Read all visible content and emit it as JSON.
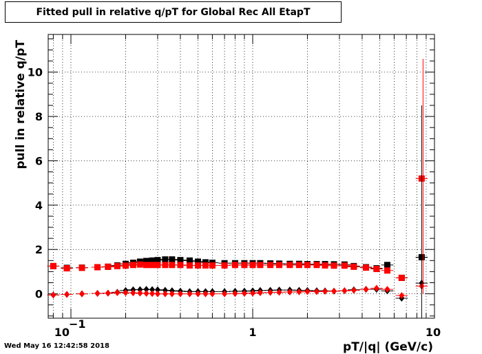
{
  "title": "Fitted pull in relative q/pT for Global Rec All EtapT",
  "timestamp": "Wed May 16 12:42:58 2018",
  "chart_data": {
    "type": "scatter",
    "title": "Fitted pull in relative q/pT for Global Rec All EtapT",
    "xlabel": "pT/|q| (GeV/c)",
    "ylabel": "pull in relative q/pT",
    "xscale": "log",
    "xlim": [
      0.075,
      10
    ],
    "ylim": [
      -1.1,
      11.7
    ],
    "grid": true,
    "x_tick_labels": [
      "10",
      "−1",
      "1",
      "10"
    ],
    "y_tick_labels": [
      "0",
      "2",
      "4",
      "6",
      "8",
      "10"
    ],
    "series": [
      {
        "color": "#000000",
        "marker": "square",
        "x": [
          0.08,
          0.095,
          0.115,
          0.14,
          0.16,
          0.18,
          0.2,
          0.22,
          0.24,
          0.26,
          0.28,
          0.3,
          0.33,
          0.36,
          0.4,
          0.45,
          0.5,
          0.55,
          0.6,
          0.7,
          0.8,
          0.9,
          1.0,
          1.1,
          1.25,
          1.4,
          1.6,
          1.8,
          2.0,
          2.25,
          2.5,
          2.8,
          3.2,
          3.6,
          4.2,
          4.8,
          5.5,
          6.6,
          8.5
        ],
        "y": [
          1.25,
          1.17,
          1.18,
          1.2,
          1.22,
          1.28,
          1.35,
          1.4,
          1.45,
          1.48,
          1.5,
          1.52,
          1.55,
          1.55,
          1.52,
          1.5,
          1.45,
          1.42,
          1.4,
          1.38,
          1.38,
          1.38,
          1.38,
          1.38,
          1.37,
          1.36,
          1.35,
          1.35,
          1.34,
          1.34,
          1.34,
          1.33,
          1.32,
          1.25,
          1.2,
          1.15,
          1.3,
          0.72,
          1.65
        ]
      },
      {
        "color": "#000000",
        "marker": "diamond",
        "x": [
          0.08,
          0.095,
          0.115,
          0.14,
          0.16,
          0.18,
          0.2,
          0.22,
          0.24,
          0.26,
          0.28,
          0.3,
          0.33,
          0.36,
          0.4,
          0.45,
          0.5,
          0.55,
          0.6,
          0.7,
          0.8,
          0.9,
          1.0,
          1.1,
          1.25,
          1.4,
          1.6,
          1.8,
          2.0,
          2.25,
          2.5,
          2.8,
          3.2,
          3.6,
          4.2,
          4.8,
          5.5,
          6.6,
          8.5
        ],
        "y": [
          -0.05,
          -0.03,
          0.0,
          0.02,
          0.03,
          0.07,
          0.15,
          0.18,
          0.19,
          0.2,
          0.19,
          0.18,
          0.16,
          0.14,
          0.12,
          0.1,
          0.1,
          0.1,
          0.1,
          0.1,
          0.11,
          0.12,
          0.13,
          0.15,
          0.16,
          0.17,
          0.17,
          0.16,
          0.15,
          0.14,
          0.13,
          0.12,
          0.14,
          0.18,
          0.2,
          0.2,
          0.13,
          -0.2,
          0.48
        ]
      },
      {
        "color": "#ff0000",
        "marker": "square",
        "x": [
          0.08,
          0.095,
          0.115,
          0.14,
          0.16,
          0.18,
          0.2,
          0.22,
          0.24,
          0.26,
          0.28,
          0.3,
          0.33,
          0.36,
          0.4,
          0.45,
          0.5,
          0.55,
          0.6,
          0.7,
          0.8,
          0.9,
          1.0,
          1.1,
          1.25,
          1.4,
          1.6,
          1.8,
          2.0,
          2.25,
          2.5,
          2.8,
          3.2,
          3.6,
          4.2,
          4.8,
          5.5,
          6.6,
          8.5
        ],
        "y": [
          1.25,
          1.15,
          1.17,
          1.2,
          1.22,
          1.25,
          1.27,
          1.3,
          1.32,
          1.3,
          1.3,
          1.3,
          1.3,
          1.3,
          1.3,
          1.28,
          1.28,
          1.28,
          1.28,
          1.28,
          1.3,
          1.3,
          1.3,
          1.3,
          1.3,
          1.3,
          1.3,
          1.3,
          1.3,
          1.3,
          1.28,
          1.27,
          1.27,
          1.22,
          1.18,
          1.12,
          1.05,
          0.72,
          5.2
        ]
      },
      {
        "color": "#ff0000",
        "marker": "diamond",
        "x": [
          0.08,
          0.095,
          0.115,
          0.14,
          0.16,
          0.18,
          0.2,
          0.22,
          0.24,
          0.26,
          0.28,
          0.3,
          0.33,
          0.36,
          0.4,
          0.45,
          0.5,
          0.55,
          0.6,
          0.7,
          0.8,
          0.9,
          1.0,
          1.1,
          1.25,
          1.4,
          1.6,
          1.8,
          2.0,
          2.25,
          2.5,
          2.8,
          3.2,
          3.6,
          4.2,
          4.8,
          5.5,
          6.6,
          8.5
        ],
        "y": [
          -0.05,
          -0.03,
          0.0,
          0.02,
          0.03,
          0.05,
          0.05,
          0.04,
          0.03,
          0.02,
          0.01,
          0.0,
          0.0,
          0.0,
          0.0,
          0.0,
          0.0,
          0.0,
          0.0,
          0.0,
          0.01,
          0.02,
          0.03,
          0.05,
          0.06,
          0.07,
          0.08,
          0.09,
          0.1,
          0.1,
          0.11,
          0.12,
          0.14,
          0.16,
          0.2,
          0.25,
          0.2,
          -0.08,
          0.35
        ]
      }
    ],
    "last_point_y_errors": {
      "red_square": [
        0.0,
        10.6
      ],
      "black_square": [
        -1.1,
        8.5
      ]
    }
  }
}
